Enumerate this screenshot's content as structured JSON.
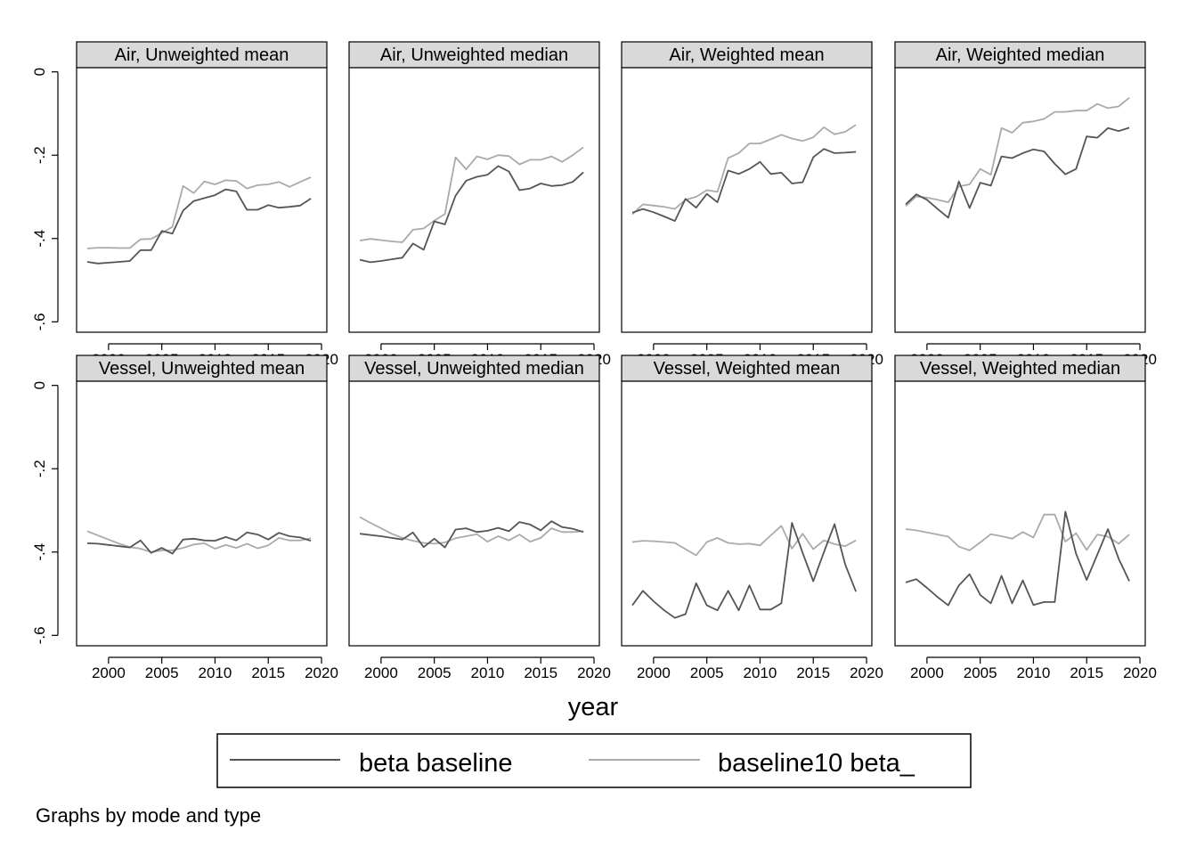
{
  "chart_data": {
    "type": "line",
    "xlabel": "year",
    "note": "Graphs by mode and type",
    "xticks": [
      2000,
      2005,
      2010,
      2015,
      2020
    ],
    "yticks": [
      0,
      -0.2,
      -0.4,
      -0.6
    ],
    "ytick_labels": [
      "0",
      "-.2",
      "-.4",
      "-.6"
    ],
    "xlim": [
      1997,
      2020.5
    ],
    "ylim": [
      -0.625,
      0.01
    ],
    "legend": {
      "placement": "bottom",
      "entries": [
        "beta baseline",
        "baseline10 beta_"
      ]
    },
    "series_colors": [
      "#555555",
      "#aaaaaa"
    ],
    "x": [
      1998,
      1999,
      2000,
      2001,
      2002,
      2003,
      2004,
      2005,
      2006,
      2007,
      2008,
      2009,
      2010,
      2011,
      2012,
      2013,
      2014,
      2015,
      2016,
      2017,
      2018,
      2019
    ],
    "panels": [
      {
        "title": "Air, Unweighted mean",
        "series": [
          {
            "name": "beta baseline",
            "values": [
              -0.456,
              -0.46,
              -0.458,
              -0.456,
              -0.454,
              -0.428,
              -0.428,
              -0.382,
              -0.388,
              -0.333,
              -0.31,
              -0.303,
              -0.296,
              -0.282,
              -0.287,
              -0.331,
              -0.331,
              -0.32,
              -0.326,
              -0.324,
              -0.321,
              -0.304
            ]
          },
          {
            "name": "baseline10 beta_",
            "values": [
              -0.424,
              -0.422,
              -0.422,
              -0.423,
              -0.423,
              -0.402,
              -0.401,
              -0.387,
              -0.372,
              -0.274,
              -0.291,
              -0.263,
              -0.27,
              -0.26,
              -0.262,
              -0.28,
              -0.272,
              -0.27,
              -0.264,
              -0.276,
              -0.264,
              -0.253
            ]
          }
        ]
      },
      {
        "title": "Air, Unweighted median",
        "series": [
          {
            "name": "beta baseline",
            "values": [
              -0.451,
              -0.457,
              -0.454,
              -0.45,
              -0.446,
              -0.412,
              -0.427,
              -0.359,
              -0.366,
              -0.297,
              -0.261,
              -0.252,
              -0.247,
              -0.226,
              -0.239,
              -0.284,
              -0.28,
              -0.268,
              -0.274,
              -0.272,
              -0.264,
              -0.241
            ]
          },
          {
            "name": "baseline10 beta_",
            "values": [
              -0.405,
              -0.401,
              -0.404,
              -0.407,
              -0.409,
              -0.379,
              -0.376,
              -0.357,
              -0.341,
              -0.205,
              -0.234,
              -0.203,
              -0.21,
              -0.2,
              -0.202,
              -0.222,
              -0.211,
              -0.211,
              -0.203,
              -0.216,
              -0.2,
              -0.181
            ]
          }
        ]
      },
      {
        "title": "Air, Weighted mean",
        "series": [
          {
            "name": "beta baseline",
            "values": [
              -0.338,
              -0.329,
              -0.337,
              -0.347,
              -0.358,
              -0.305,
              -0.326,
              -0.293,
              -0.313,
              -0.237,
              -0.245,
              -0.233,
              -0.216,
              -0.245,
              -0.242,
              -0.268,
              -0.265,
              -0.205,
              -0.185,
              -0.195,
              -0.194,
              -0.192
            ]
          },
          {
            "name": "baseline10 beta_",
            "values": [
              -0.342,
              -0.318,
              -0.321,
              -0.324,
              -0.329,
              -0.307,
              -0.3,
              -0.284,
              -0.288,
              -0.207,
              -0.195,
              -0.172,
              -0.172,
              -0.162,
              -0.151,
              -0.16,
              -0.166,
              -0.157,
              -0.133,
              -0.15,
              -0.144,
              -0.127
            ]
          }
        ]
      },
      {
        "title": "Air, Weighted median",
        "series": [
          {
            "name": "beta baseline",
            "values": [
              -0.318,
              -0.294,
              -0.307,
              -0.329,
              -0.35,
              -0.263,
              -0.327,
              -0.266,
              -0.273,
              -0.203,
              -0.207,
              -0.195,
              -0.186,
              -0.191,
              -0.221,
              -0.246,
              -0.233,
              -0.155,
              -0.158,
              -0.135,
              -0.142,
              -0.134
            ]
          },
          {
            "name": "baseline10 beta_",
            "values": [
              -0.322,
              -0.299,
              -0.302,
              -0.307,
              -0.313,
              -0.275,
              -0.27,
              -0.233,
              -0.247,
              -0.135,
              -0.146,
              -0.122,
              -0.119,
              -0.113,
              -0.096,
              -0.096,
              -0.093,
              -0.093,
              -0.077,
              -0.087,
              -0.083,
              -0.062
            ]
          }
        ]
      },
      {
        "title": "Vessel, Unweighted mean",
        "series": [
          {
            "name": "beta baseline",
            "values": [
              -0.379,
              -0.38,
              -0.383,
              -0.386,
              -0.389,
              -0.372,
              -0.402,
              -0.39,
              -0.404,
              -0.37,
              -0.368,
              -0.372,
              -0.373,
              -0.364,
              -0.372,
              -0.353,
              -0.358,
              -0.37,
              -0.354,
              -0.362,
              -0.365,
              -0.373
            ]
          },
          {
            "name": "baseline10 beta_",
            "values": [
              -0.35,
              -0.36,
              -0.37,
              -0.38,
              -0.388,
              -0.392,
              -0.4,
              -0.396,
              -0.396,
              -0.39,
              -0.382,
              -0.379,
              -0.392,
              -0.383,
              -0.39,
              -0.38,
              -0.391,
              -0.384,
              -0.366,
              -0.372,
              -0.372,
              -0.367
            ]
          }
        ]
      },
      {
        "title": "Vessel, Unweighted median",
        "series": [
          {
            "name": "beta baseline",
            "values": [
              -0.356,
              -0.359,
              -0.362,
              -0.366,
              -0.37,
              -0.353,
              -0.388,
              -0.368,
              -0.389,
              -0.346,
              -0.343,
              -0.352,
              -0.349,
              -0.342,
              -0.35,
              -0.328,
              -0.334,
              -0.348,
              -0.326,
              -0.34,
              -0.344,
              -0.352
            ]
          },
          {
            "name": "baseline10 beta_",
            "values": [
              -0.316,
              -0.33,
              -0.343,
              -0.356,
              -0.366,
              -0.373,
              -0.378,
              -0.38,
              -0.377,
              -0.367,
              -0.362,
              -0.357,
              -0.375,
              -0.362,
              -0.372,
              -0.358,
              -0.375,
              -0.366,
              -0.343,
              -0.352,
              -0.352,
              -0.35
            ]
          }
        ]
      },
      {
        "title": "Vessel, Weighted mean",
        "series": [
          {
            "name": "beta baseline",
            "values": [
              -0.528,
              -0.493,
              -0.518,
              -0.54,
              -0.558,
              -0.549,
              -0.475,
              -0.528,
              -0.54,
              -0.493,
              -0.54,
              -0.48,
              -0.538,
              -0.538,
              -0.523,
              -0.33,
              -0.402,
              -0.47,
              -0.4,
              -0.333,
              -0.43,
              -0.495
            ]
          },
          {
            "name": "baseline10 beta_",
            "values": [
              -0.376,
              -0.373,
              -0.374,
              -0.376,
              -0.378,
              -0.393,
              -0.408,
              -0.376,
              -0.366,
              -0.378,
              -0.381,
              -0.38,
              -0.384,
              -0.36,
              -0.337,
              -0.392,
              -0.356,
              -0.393,
              -0.372,
              -0.381,
              -0.386,
              -0.372
            ]
          }
        ]
      },
      {
        "title": "Vessel, Weighted median",
        "series": [
          {
            "name": "beta baseline",
            "values": [
              -0.473,
              -0.465,
              -0.486,
              -0.508,
              -0.528,
              -0.48,
              -0.453,
              -0.503,
              -0.523,
              -0.457,
              -0.523,
              -0.468,
              -0.527,
              -0.52,
              -0.52,
              -0.303,
              -0.404,
              -0.467,
              -0.406,
              -0.345,
              -0.416,
              -0.47
            ]
          },
          {
            "name": "baseline10 beta_",
            "values": [
              -0.345,
              -0.348,
              -0.353,
              -0.358,
              -0.363,
              -0.387,
              -0.396,
              -0.377,
              -0.357,
              -0.362,
              -0.368,
              -0.352,
              -0.365,
              -0.31,
              -0.31,
              -0.375,
              -0.355,
              -0.395,
              -0.358,
              -0.363,
              -0.38,
              -0.358
            ]
          }
        ]
      }
    ]
  }
}
